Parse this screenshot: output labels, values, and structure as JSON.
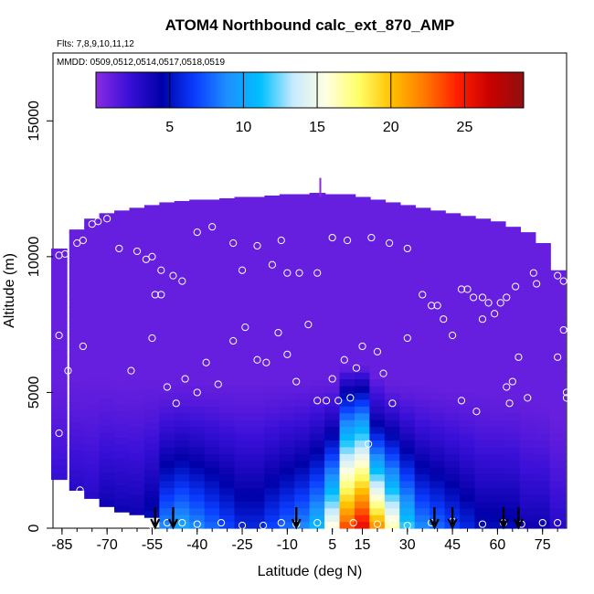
{
  "chart_data": {
    "type": "heatmap",
    "title": "ATOM4 Northbound calc_ext_870_AMP",
    "subtitle_flights": "Flts: 7,8,9,10,11,12",
    "subtitle_dates": "MMDD: 0509,0512,0514,0517,0518,0519",
    "xlabel": "Latitude (deg N)",
    "ylabel": "Altitude (m)",
    "xlim": [
      -88,
      83
    ],
    "ylim": [
      0,
      17500
    ],
    "x_ticks": [
      "-85",
      "-70",
      "-55",
      "-40",
      "-25",
      "-10",
      "5",
      "15",
      "30",
      "45",
      "60",
      "75"
    ],
    "y_ticks": [
      "0",
      "5000",
      "10000",
      "15000"
    ],
    "colorbar": {
      "ticks": [
        "5",
        "10",
        "15",
        "20",
        "25"
      ],
      "range": [
        0,
        29
      ],
      "colors": [
        "#8a2be2",
        "#3a10d8",
        "#0000a8",
        "#0a3cff",
        "#1e90ff",
        "#00bfff",
        "#c8eaff",
        "#ffffe0",
        "#ffff66",
        "#ffc000",
        "#ff7800",
        "#ff1e00",
        "#c80000",
        "#901010"
      ]
    },
    "field_description": "Extinction field interpolated on latitude-altitude grid",
    "field_columns": [
      {
        "lat": -86,
        "top": 10300,
        "bot": 1800,
        "low": 2.5
      },
      {
        "lat": -80,
        "top": 11000,
        "bot": 1400,
        "low": 3
      },
      {
        "lat": -75,
        "top": 11400,
        "bot": 1100,
        "low": 3
      },
      {
        "lat": -70,
        "top": 11600,
        "bot": 800,
        "low": 4
      },
      {
        "lat": -65,
        "top": 11700,
        "bot": 600,
        "low": 4
      },
      {
        "lat": -60,
        "top": 11800,
        "bot": 500,
        "low": 4
      },
      {
        "lat": -55,
        "top": 11900,
        "bot": 400,
        "low": 5
      },
      {
        "lat": -50,
        "top": 12000,
        "bot": 0,
        "low": 9
      },
      {
        "lat": -45,
        "top": 12050,
        "bot": 0,
        "low": 10
      },
      {
        "lat": -40,
        "top": 12100,
        "bot": 0,
        "low": 9
      },
      {
        "lat": -35,
        "top": 12100,
        "bot": 0,
        "low": 8
      },
      {
        "lat": -30,
        "top": 12150,
        "bot": 0,
        "low": 7
      },
      {
        "lat": -25,
        "top": 12200,
        "bot": 0,
        "low": 6
      },
      {
        "lat": -20,
        "top": 12200,
        "bot": 0,
        "low": 6
      },
      {
        "lat": -15,
        "top": 12250,
        "bot": 0,
        "low": 7
      },
      {
        "lat": -10,
        "top": 12300,
        "bot": 0,
        "low": 8
      },
      {
        "lat": -5,
        "top": 12300,
        "bot": 0,
        "low": 9
      },
      {
        "lat": 0,
        "top": 12350,
        "bot": 0,
        "low": 11
      },
      {
        "lat": 5,
        "top": 12300,
        "bot": 0,
        "low": 16
      },
      {
        "lat": 10,
        "top": 12300,
        "bot": 0,
        "low": 24
      },
      {
        "lat": 15,
        "top": 12200,
        "bot": 0,
        "low": 26
      },
      {
        "lat": 20,
        "top": 12100,
        "bot": 0,
        "low": 22
      },
      {
        "lat": 25,
        "top": 12000,
        "bot": 0,
        "low": 17
      },
      {
        "lat": 30,
        "top": 11900,
        "bot": 0,
        "low": 12
      },
      {
        "lat": 35,
        "top": 11800,
        "bot": 0,
        "low": 9
      },
      {
        "lat": 40,
        "top": 11700,
        "bot": 0,
        "low": 8
      },
      {
        "lat": 45,
        "top": 11600,
        "bot": 0,
        "low": 7
      },
      {
        "lat": 50,
        "top": 11500,
        "bot": 0,
        "low": 6
      },
      {
        "lat": 55,
        "top": 11400,
        "bot": 0,
        "low": 5
      },
      {
        "lat": 60,
        "top": 11300,
        "bot": 0,
        "low": 5
      },
      {
        "lat": 65,
        "top": 11100,
        "bot": 0,
        "low": 5
      },
      {
        "lat": 70,
        "top": 10900,
        "bot": 0,
        "low": 4
      },
      {
        "lat": 75,
        "top": 10500,
        "bot": 0,
        "low": 4
      },
      {
        "lat": 80,
        "top": 9500,
        "bot": 0,
        "low": 3
      }
    ],
    "plume_core": {
      "lat": 13,
      "alt_top": 4200,
      "value": 28
    },
    "observation_points": [
      [
        -86,
        10050
      ],
      [
        -84,
        10100
      ],
      [
        -80,
        10500
      ],
      [
        -78,
        10600
      ],
      [
        -75,
        11200
      ],
      [
        -73,
        11300
      ],
      [
        -70,
        11400
      ],
      [
        -66,
        10300
      ],
      [
        -60,
        10200
      ],
      [
        -57,
        9900
      ],
      [
        -55,
        10000
      ],
      [
        -52,
        9500
      ],
      [
        -48,
        9300
      ],
      [
        -45,
        9100
      ],
      [
        -40,
        10900
      ],
      [
        -35,
        11100
      ],
      [
        -30,
        12300
      ],
      [
        -28,
        10500
      ],
      [
        -25,
        9500
      ],
      [
        -20,
        10400
      ],
      [
        -15,
        9700
      ],
      [
        -12,
        10600
      ],
      [
        -10,
        9400
      ],
      [
        -6,
        9400
      ],
      [
        0,
        9400
      ],
      [
        5,
        10700
      ],
      [
        10,
        10600
      ],
      [
        18,
        10700
      ],
      [
        24,
        10500
      ],
      [
        30,
        10300
      ],
      [
        -86,
        7100
      ],
      [
        -83,
        5800
      ],
      [
        -78,
        6700
      ],
      [
        -62,
        5800
      ],
      [
        -55,
        7000
      ],
      [
        -54,
        8600
      ],
      [
        -52,
        8600
      ],
      [
        -50,
        5200
      ],
      [
        -47,
        4600
      ],
      [
        -44,
        5500
      ],
      [
        -40,
        5000
      ],
      [
        -37,
        6100
      ],
      [
        -33,
        5300
      ],
      [
        -28,
        6900
      ],
      [
        -24,
        7400
      ],
      [
        -20,
        6200
      ],
      [
        -17,
        6100
      ],
      [
        -13,
        7200
      ],
      [
        -10,
        6400
      ],
      [
        -7,
        5400
      ],
      [
        -3,
        7500
      ],
      [
        0,
        4700
      ],
      [
        3,
        4700
      ],
      [
        5,
        5500
      ],
      [
        7,
        4700
      ],
      [
        9,
        6200
      ],
      [
        11,
        4800
      ],
      [
        13,
        5900
      ],
      [
        15,
        6700
      ],
      [
        17,
        3100
      ],
      [
        20,
        6500
      ],
      [
        22,
        5700
      ],
      [
        25,
        4600
      ],
      [
        30,
        7000
      ],
      [
        35,
        8600
      ],
      [
        38,
        8200
      ],
      [
        40,
        8200
      ],
      [
        42,
        7700
      ],
      [
        45,
        7100
      ],
      [
        48,
        4700
      ],
      [
        48,
        8800
      ],
      [
        50,
        8800
      ],
      [
        52,
        8500
      ],
      [
        53,
        4300
      ],
      [
        55,
        8500
      ],
      [
        55,
        7700
      ],
      [
        57,
        8300
      ],
      [
        59,
        7900
      ],
      [
        61,
        8300
      ],
      [
        63,
        8500
      ],
      [
        63,
        5200
      ],
      [
        64,
        4600
      ],
      [
        65,
        5400
      ],
      [
        66,
        8900
      ],
      [
        67,
        6300
      ],
      [
        70,
        4800
      ],
      [
        72,
        9400
      ],
      [
        73,
        9000
      ],
      [
        75,
        11000
      ],
      [
        76,
        10700
      ],
      [
        77,
        11100
      ],
      [
        78,
        10800
      ],
      [
        80,
        9300
      ],
      [
        80,
        6300
      ],
      [
        82,
        7300
      ],
      [
        82,
        9100
      ],
      [
        83,
        5000
      ],
      [
        83,
        4800
      ],
      [
        -86,
        3500
      ],
      [
        -79,
        1400
      ],
      [
        -55,
        100
      ],
      [
        -50,
        200
      ],
      [
        -45,
        200
      ],
      [
        -40,
        150
      ],
      [
        -32,
        200
      ],
      [
        -25,
        100
      ],
      [
        -18,
        100
      ],
      [
        -12,
        200
      ],
      [
        -7,
        150
      ],
      [
        0,
        200
      ],
      [
        5,
        100
      ],
      [
        12,
        200
      ],
      [
        20,
        150
      ],
      [
        25,
        200
      ],
      [
        30,
        100
      ],
      [
        38,
        200
      ],
      [
        45,
        250
      ],
      [
        55,
        150
      ],
      [
        62,
        200
      ],
      [
        68,
        150
      ],
      [
        75,
        200
      ],
      [
        80,
        200
      ]
    ],
    "arrow_latitudes": [
      -54,
      -48,
      -7,
      39,
      45,
      62,
      67
    ],
    "marker_latitude": 1
  }
}
